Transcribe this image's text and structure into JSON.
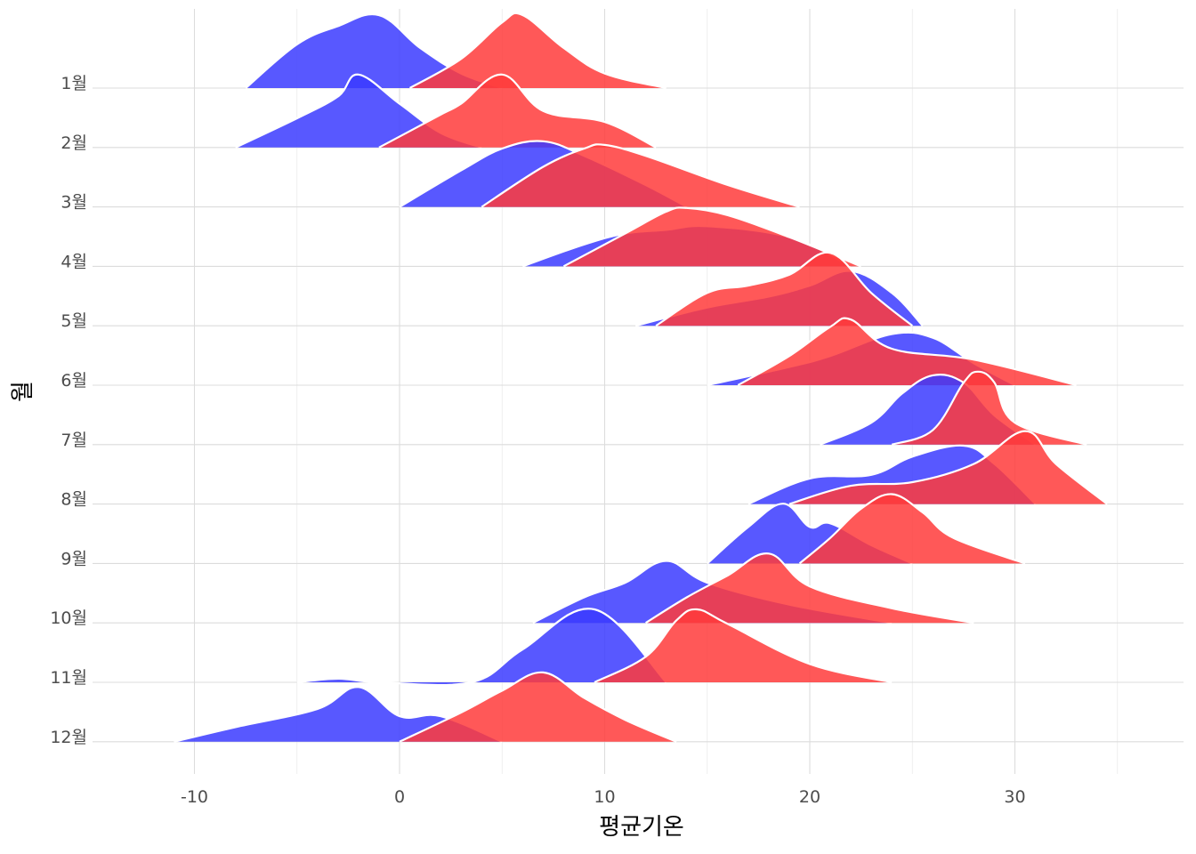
{
  "chart_data": {
    "type": "area",
    "subtype": "ridgeline",
    "xlabel": "평균기온",
    "ylabel": "월",
    "xlim": [
      -15,
      38
    ],
    "x_ticks": [
      -10,
      0,
      10,
      20,
      30
    ],
    "x_tick_labels": [
      "-10",
      "0",
      "10",
      "20",
      "30"
    ],
    "categories": [
      "1월",
      "2월",
      "3월",
      "4월",
      "5월",
      "6월",
      "7월",
      "8월",
      "9월",
      "10월",
      "11월",
      "12월"
    ],
    "grid": true,
    "legend": "none",
    "colors": {
      "series_a": "#3b3bff",
      "series_b": "#ff3b3b",
      "background": "#ffffff",
      "grid": "#dcdcdc",
      "outline": "#ffffff"
    },
    "series": [
      {
        "color": "#3b3bff",
        "ridges": [
          {
            "category": "1월",
            "x": [
              -7.5,
              -5,
              -3,
              -1,
              1,
              3,
              5
            ],
            "y": [
              0,
              0.6,
              0.85,
              1,
              0.55,
              0.2,
              0
            ]
          },
          {
            "category": "2월",
            "x": [
              -8,
              -5,
              -3,
              -2,
              0,
              2,
              4
            ],
            "y": [
              0,
              0.4,
              0.7,
              1,
              0.6,
              0.2,
              0
            ]
          },
          {
            "category": "3월",
            "x": [
              0,
              3,
              5,
              7,
              9,
              12,
              14
            ],
            "y": [
              0,
              0.5,
              0.8,
              0.9,
              0.7,
              0.3,
              0
            ]
          },
          {
            "category": "4월",
            "x": [
              6,
              9,
              11,
              13,
              15,
              19,
              22
            ],
            "y": [
              0,
              0.3,
              0.45,
              0.5,
              0.55,
              0.4,
              0
            ]
          },
          {
            "category": "5월",
            "x": [
              11.5,
              15,
              18,
              20,
              22,
              24,
              25.5
            ],
            "y": [
              0,
              0.25,
              0.4,
              0.55,
              0.75,
              0.45,
              0
            ]
          },
          {
            "category": "6월",
            "x": [
              15,
              19,
              21,
              24,
              26,
              28,
              30
            ],
            "y": [
              0,
              0.25,
              0.4,
              0.7,
              0.65,
              0.3,
              0
            ]
          },
          {
            "category": "7월",
            "x": [
              20.5,
              23,
              24.5,
              26,
              27.5,
              29,
              31
            ],
            "y": [
              0,
              0.3,
              0.7,
              0.95,
              0.85,
              0.4,
              0
            ]
          },
          {
            "category": "8월",
            "x": [
              17,
              20,
              23,
              25,
              27.5,
              29,
              31
            ],
            "y": [
              0,
              0.35,
              0.4,
              0.65,
              0.8,
              0.55,
              0
            ]
          },
          {
            "category": "9월",
            "x": [
              15,
              17,
              18.7,
              20,
              21,
              23,
              25
            ],
            "y": [
              0,
              0.5,
              0.82,
              0.5,
              0.55,
              0.25,
              0
            ]
          },
          {
            "category": "10월",
            "x": [
              6.5,
              9,
              11,
              13,
              15,
              19,
              24
            ],
            "y": [
              0,
              0.35,
              0.55,
              0.85,
              0.55,
              0.25,
              0
            ]
          },
          {
            "category": "11월",
            "x": [
              -5,
              -3,
              -1,
              3.5,
              6,
              9.5,
              13
            ],
            "y": [
              0,
              0.05,
              0,
              0,
              0.45,
              1,
              0
            ]
          },
          {
            "category": "12월",
            "x": [
              -11,
              -8,
              -4,
              -2,
              0,
              2,
              5
            ],
            "y": [
              0,
              0.2,
              0.45,
              0.75,
              0.35,
              0.35,
              0
            ]
          }
        ]
      },
      {
        "color": "#ff3b3b",
        "ridges": [
          {
            "category": "1월",
            "x": [
              0.5,
              3,
              5,
              6,
              8,
              10,
              13
            ],
            "y": [
              0,
              0.4,
              0.9,
              1,
              0.55,
              0.2,
              0
            ]
          },
          {
            "category": "2월",
            "x": [
              -1,
              2,
              3,
              5,
              7,
              10,
              12.5
            ],
            "y": [
              0,
              0.45,
              0.6,
              1,
              0.5,
              0.35,
              0
            ]
          },
          {
            "category": "3월",
            "x": [
              4,
              7,
              9,
              10,
              12,
              16,
              19.5
            ],
            "y": [
              0,
              0.55,
              0.8,
              0.85,
              0.7,
              0.3,
              0
            ]
          },
          {
            "category": "4월",
            "x": [
              8,
              11,
              13,
              14,
              16,
              19,
              22.5
            ],
            "y": [
              0,
              0.45,
              0.75,
              0.8,
              0.7,
              0.4,
              0
            ]
          },
          {
            "category": "5월",
            "x": [
              12.5,
              15,
              17,
              19,
              21,
              23,
              25
            ],
            "y": [
              0,
              0.45,
              0.55,
              0.7,
              1,
              0.45,
              0
            ]
          },
          {
            "category": "6월",
            "x": [
              16.5,
              19,
              21,
              22,
              24,
              28,
              33
            ],
            "y": [
              0,
              0.4,
              0.8,
              0.9,
              0.5,
              0.35,
              0
            ]
          },
          {
            "category": "7월",
            "x": [
              24,
              26,
              27.5,
              28.2,
              29,
              30,
              33.5
            ],
            "y": [
              0,
              0.2,
              0.85,
              1,
              0.85,
              0.3,
              0
            ]
          },
          {
            "category": "8월",
            "x": [
              19,
              22,
              25,
              28,
              30.5,
              32,
              34.5
            ],
            "y": [
              0,
              0.25,
              0.3,
              0.55,
              1,
              0.55,
              0
            ]
          },
          {
            "category": "9월",
            "x": [
              19.5,
              21,
              22.5,
              24,
              25.5,
              27,
              30.5
            ],
            "y": [
              0,
              0.35,
              0.75,
              0.95,
              0.7,
              0.35,
              0
            ]
          },
          {
            "category": "10월",
            "x": [
              12,
              14,
              16,
              18,
              20,
              24,
              28
            ],
            "y": [
              0,
              0.35,
              0.65,
              0.95,
              0.5,
              0.2,
              0
            ]
          },
          {
            "category": "11월",
            "x": [
              9.5,
              12,
              13.5,
              14.5,
              16,
              20,
              24
            ],
            "y": [
              0,
              0.35,
              0.85,
              1,
              0.8,
              0.25,
              0
            ]
          },
          {
            "category": "12월",
            "x": [
              0,
              3,
              5,
              7,
              9,
              11,
              13.5
            ],
            "y": [
              0,
              0.4,
              0.7,
              0.95,
              0.6,
              0.3,
              0
            ]
          }
        ]
      }
    ]
  }
}
